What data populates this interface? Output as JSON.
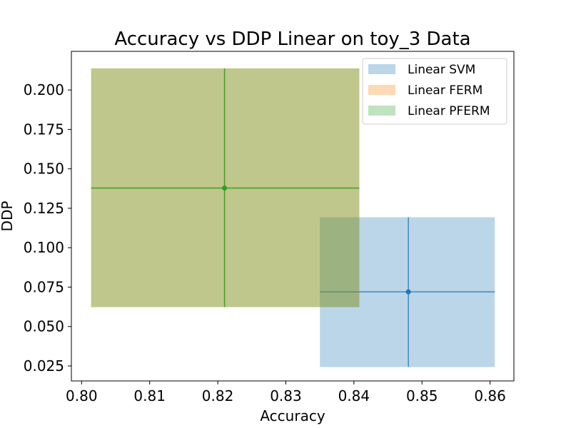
{
  "chart_data": {
    "type": "scatter",
    "title": "Accuracy vs DDP Linear on toy_3 Data",
    "xlabel": "Accuracy",
    "ylabel": "DDP",
    "xlim": [
      0.7985,
      0.8635
    ],
    "ylim": [
      0.0155,
      0.2245
    ],
    "xticks": [
      0.8,
      0.81,
      0.82,
      0.83,
      0.84,
      0.85,
      0.86
    ],
    "xtick_labels": [
      "0.80",
      "0.81",
      "0.82",
      "0.83",
      "0.84",
      "0.85",
      "0.86"
    ],
    "yticks": [
      0.025,
      0.05,
      0.075,
      0.1,
      0.125,
      0.15,
      0.175,
      0.2
    ],
    "ytick_labels": [
      "0.025",
      "0.050",
      "0.075",
      "0.100",
      "0.125",
      "0.150",
      "0.175",
      "0.200"
    ],
    "grid": false,
    "legend_position": "top-right",
    "series": [
      {
        "name": "Linear SVM",
        "color": "#1f77b4",
        "x": 0.848,
        "y": 0.072,
        "x_range": [
          0.835,
          0.8607
        ],
        "y_range": [
          0.0243,
          0.1193
        ]
      },
      {
        "name": "Linear FERM",
        "color": "#ff7f0e",
        "x": 0.821,
        "y": 0.1378,
        "x_range": [
          0.8014,
          0.8408
        ],
        "y_range": [
          0.0623,
          0.2137
        ]
      },
      {
        "name": "Linear PFERM",
        "color": "#2ca02c",
        "x": 0.821,
        "y": 0.1378,
        "x_range": [
          0.8014,
          0.8408
        ],
        "y_range": [
          0.0623,
          0.2137
        ]
      }
    ]
  }
}
